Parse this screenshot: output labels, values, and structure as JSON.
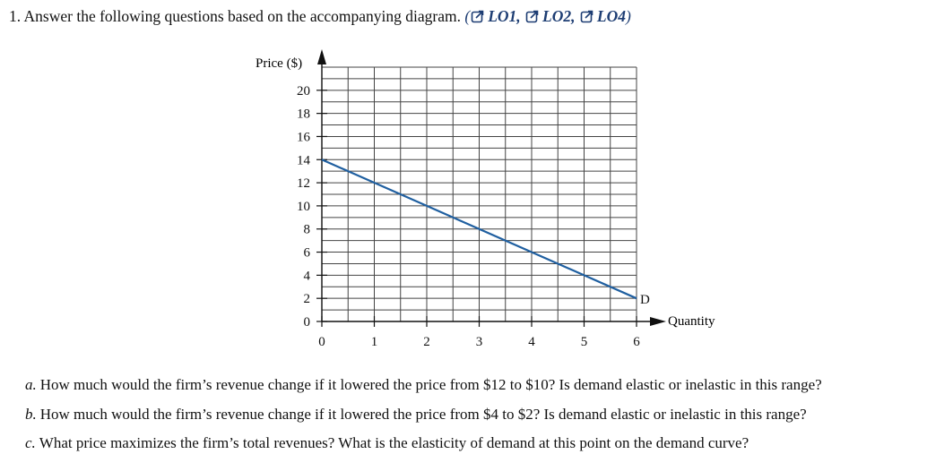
{
  "question": {
    "number": "1.",
    "text": "Answer the following questions based on the accompanying diagram.",
    "open_paren": "(",
    "close_paren": ")",
    "links": [
      "LO1,",
      "LO2,",
      "LO4"
    ],
    "link_icon": "external-link-icon",
    "link_color": "#1d3d73"
  },
  "chart_data": {
    "type": "line",
    "ylabel": "Price ($)",
    "xlabel": "Quantity",
    "xlim": [
      0,
      6
    ],
    "ylim": [
      0,
      22
    ],
    "x_ticks": [
      "0",
      "1",
      "2",
      "3",
      "4",
      "5",
      "6"
    ],
    "y_ticks": [
      "0",
      "2",
      "4",
      "6",
      "8",
      "10",
      "12",
      "14",
      "16",
      "18",
      "20"
    ],
    "grid": true,
    "series": [
      {
        "name": "D",
        "color": "#1f5fa0",
        "x": [
          0,
          6
        ],
        "y": [
          14,
          2
        ]
      }
    ]
  },
  "subquestions": [
    {
      "letter": "a.",
      "text": "How much would the firm’s revenue change if it lowered the price from $12 to $10? Is demand elastic or inelastic in this range?"
    },
    {
      "letter": "b.",
      "text": "How much would the firm’s revenue change if it lowered the price from $4 to $2? Is demand elastic or inelastic in this range?"
    },
    {
      "letter": "c.",
      "text": "What price maximizes the firm’s total revenues? What is the elasticity of demand at this point on the demand curve?"
    }
  ]
}
